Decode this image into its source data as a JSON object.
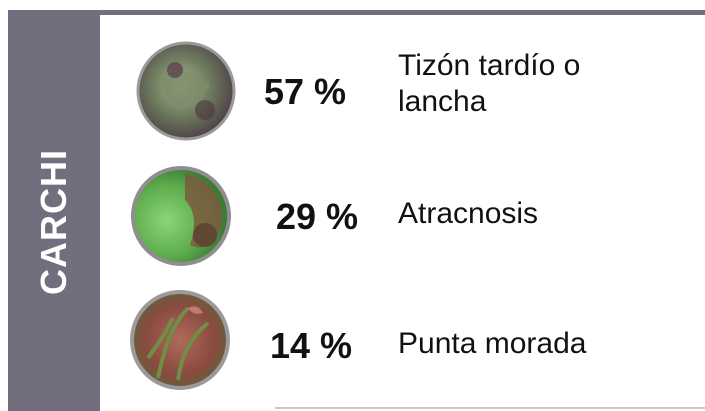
{
  "side_label": "CARCHI",
  "items": [
    {
      "percent": "57 %",
      "name": "Tizón tardío o lancha"
    },
    {
      "percent": "29 %",
      "name": "Atracnosis"
    },
    {
      "percent": "14 %",
      "name": "Punta morada"
    }
  ]
}
